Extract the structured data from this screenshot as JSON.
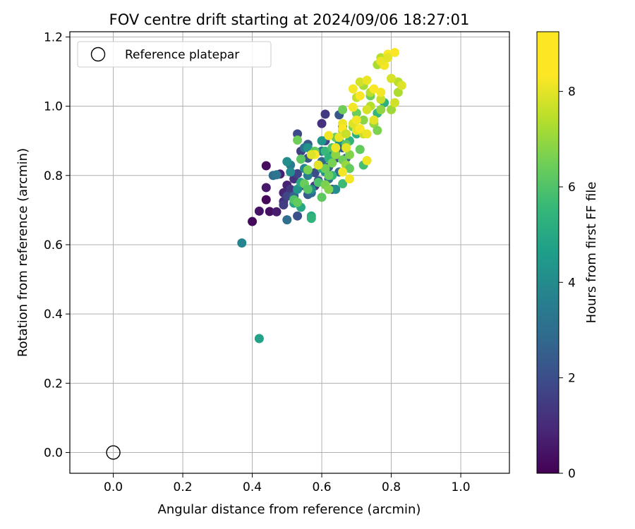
{
  "chart_data": {
    "type": "scatter",
    "title": "FOV centre drift starting at 2024/09/06 18:27:01",
    "xlabel": "Angular distance from reference (arcmin)",
    "ylabel": "Rotation from reference (arcmin)",
    "xlim": [
      -0.125,
      1.14
    ],
    "ylim": [
      -0.06,
      1.215
    ],
    "xticks": [
      "0.0",
      "0.2",
      "0.4",
      "0.6",
      "0.8",
      "1.0"
    ],
    "yticks": [
      "0.0",
      "0.2",
      "0.4",
      "0.6",
      "0.8",
      "1.0",
      "1.2"
    ],
    "grid": true,
    "legend": {
      "position": "top-left",
      "entries": [
        {
          "label": "Reference platepar",
          "marker": "open-circle",
          "x": 0.0,
          "y": 0.0
        }
      ]
    },
    "colorbar": {
      "label": "Hours from first FF file",
      "min": 0,
      "max": 9.25,
      "ticks": [
        "0",
        "2",
        "4",
        "6",
        "8"
      ],
      "colormap": "viridis"
    },
    "series": [
      {
        "points": [
          [
            0.4,
            0.667,
            0.2
          ],
          [
            0.42,
            0.697,
            0.5
          ],
          [
            0.44,
            0.828,
            0.3
          ],
          [
            0.44,
            0.765,
            0.6
          ],
          [
            0.44,
            0.73,
            0.2
          ],
          [
            0.45,
            0.696,
            0.4
          ],
          [
            0.47,
            0.695,
            0.7
          ],
          [
            0.48,
            0.804,
            0.8
          ],
          [
            0.49,
            0.75,
            1.0
          ],
          [
            0.49,
            0.725,
            1.2
          ],
          [
            0.5,
            0.772,
            0.9
          ],
          [
            0.51,
            0.76,
            1.5
          ],
          [
            0.5,
            0.74,
            2.0
          ],
          [
            0.49,
            0.715,
            1.7
          ],
          [
            0.52,
            0.742,
            2.2
          ],
          [
            0.52,
            0.79,
            1.4
          ],
          [
            0.53,
            0.805,
            1.9
          ],
          [
            0.54,
            0.77,
            2.5
          ],
          [
            0.53,
            0.683,
            2.3
          ],
          [
            0.53,
            0.92,
            2.1
          ],
          [
            0.54,
            0.87,
            1.8
          ],
          [
            0.56,
            0.89,
            2.6
          ],
          [
            0.56,
            0.85,
            2.4
          ],
          [
            0.56,
            0.745,
            2.7
          ],
          [
            0.58,
            0.808,
            2.2
          ],
          [
            0.58,
            0.77,
            1.6
          ],
          [
            0.6,
            0.95,
            1.3
          ],
          [
            0.61,
            0.977,
            1.6
          ],
          [
            0.61,
            0.9,
            2.0
          ],
          [
            0.62,
            0.825,
            2.8
          ],
          [
            0.64,
            0.85,
            2.3
          ],
          [
            0.63,
            0.76,
            1.8
          ],
          [
            0.65,
            0.975,
            2.5
          ],
          [
            0.66,
            0.94,
            2.0
          ],
          [
            0.66,
            0.88,
            2.6
          ],
          [
            0.67,
            0.85,
            2.9
          ],
          [
            0.59,
            0.785,
            2.4
          ],
          [
            0.6,
            0.84,
            3.1
          ],
          [
            0.46,
            0.8,
            3.3
          ],
          [
            0.47,
            0.802,
            3.6
          ],
          [
            0.5,
            0.672,
            3.4
          ],
          [
            0.51,
            0.83,
            3.8
          ],
          [
            0.52,
            0.74,
            3.0
          ],
          [
            0.55,
            0.88,
            3.5
          ],
          [
            0.56,
            0.8,
            3.9
          ],
          [
            0.57,
            0.75,
            3.2
          ],
          [
            0.6,
            0.87,
            3.7
          ],
          [
            0.62,
            0.79,
            3.4
          ],
          [
            0.64,
            0.87,
            3.6
          ],
          [
            0.65,
            0.81,
            3.3
          ],
          [
            0.37,
            0.605,
            4.2
          ],
          [
            0.5,
            0.84,
            4.5
          ],
          [
            0.51,
            0.81,
            4.4
          ],
          [
            0.53,
            0.76,
            4.8
          ],
          [
            0.55,
            0.82,
            4.3
          ],
          [
            0.56,
            0.88,
            4.7
          ],
          [
            0.57,
            0.76,
            4.6
          ],
          [
            0.59,
            0.83,
            4.1
          ],
          [
            0.6,
            0.9,
            4.9
          ],
          [
            0.61,
            0.81,
            4.5
          ],
          [
            0.63,
            0.86,
            4.2
          ],
          [
            0.64,
            0.76,
            4.6
          ],
          [
            0.65,
            0.9,
            4.8
          ],
          [
            0.42,
            0.329,
            5.3
          ],
          [
            0.52,
            0.72,
            5.4
          ],
          [
            0.54,
            0.708,
            5.5
          ],
          [
            0.54,
            0.78,
            5.6
          ],
          [
            0.57,
            0.683,
            5.7
          ],
          [
            0.57,
            0.676,
            6.0
          ],
          [
            0.6,
            0.82,
            5.8
          ],
          [
            0.61,
            0.87,
            6.2
          ],
          [
            0.62,
            0.85,
            5.9
          ],
          [
            0.63,
            0.8,
            6.1
          ],
          [
            0.64,
            0.88,
            5.5
          ],
          [
            0.66,
            0.776,
            6.3
          ],
          [
            0.68,
            0.9,
            6.0
          ],
          [
            0.7,
            0.92,
            5.8
          ],
          [
            0.7,
            0.96,
            6.4
          ],
          [
            0.72,
            0.83,
            6.5
          ],
          [
            0.78,
            1.01,
            5.9
          ],
          [
            0.76,
            0.98,
            6.1
          ],
          [
            0.52,
            0.73,
            6.7
          ],
          [
            0.53,
            0.722,
            7.0
          ],
          [
            0.53,
            0.902,
            7.2
          ],
          [
            0.54,
            0.847,
            6.9
          ],
          [
            0.55,
            0.776,
            7.1
          ],
          [
            0.56,
            0.76,
            6.8
          ],
          [
            0.56,
            0.816,
            7.3
          ],
          [
            0.58,
            0.87,
            7.0
          ],
          [
            0.59,
            0.78,
            6.6
          ],
          [
            0.6,
            0.737,
            6.9
          ],
          [
            0.61,
            0.773,
            7.4
          ],
          [
            0.61,
            0.82,
            7.2
          ],
          [
            0.62,
            0.76,
            7.5
          ],
          [
            0.62,
            0.8,
            7.1
          ],
          [
            0.63,
            0.836,
            7.3
          ],
          [
            0.63,
            0.88,
            6.7
          ],
          [
            0.64,
            0.86,
            7.6
          ],
          [
            0.64,
            0.91,
            7.0
          ],
          [
            0.66,
            0.845,
            7.2
          ],
          [
            0.66,
            0.93,
            7.4
          ],
          [
            0.67,
            0.89,
            6.9
          ],
          [
            0.67,
            0.83,
            7.8
          ],
          [
            0.68,
            0.82,
            7.0
          ],
          [
            0.68,
            0.86,
            7.5
          ],
          [
            0.69,
            0.94,
            7.3
          ],
          [
            0.7,
            0.98,
            7.1
          ],
          [
            0.71,
            0.875,
            7.0
          ],
          [
            0.72,
            0.96,
            7.6
          ],
          [
            0.74,
            1.03,
            7.2
          ],
          [
            0.75,
            0.95,
            7.8
          ],
          [
            0.76,
            0.93,
            7.4
          ],
          [
            0.77,
            0.99,
            7.7
          ],
          [
            0.66,
            0.99,
            7.2
          ],
          [
            0.8,
            0.99,
            7.9
          ],
          [
            0.82,
            1.04,
            8.1
          ],
          [
            0.82,
            1.07,
            8.3
          ],
          [
            0.77,
            1.14,
            8.2
          ],
          [
            0.72,
            1.06,
            8.0
          ],
          [
            0.7,
            1.025,
            8.4
          ],
          [
            0.74,
            1.0,
            8.2
          ],
          [
            0.77,
            1.02,
            8.5
          ],
          [
            0.71,
            1.07,
            8.6
          ],
          [
            0.73,
            0.99,
            8.7
          ],
          [
            0.69,
            0.95,
            8.8
          ],
          [
            0.7,
            0.93,
            8.9
          ],
          [
            0.74,
            1.04,
            8.3
          ],
          [
            0.76,
            1.12,
            8.1
          ],
          [
            0.8,
            1.08,
            8.7
          ],
          [
            0.72,
            0.92,
            8.5
          ],
          [
            0.67,
            0.88,
            8.9
          ],
          [
            0.66,
            0.95,
            9.0
          ],
          [
            0.69,
            0.997,
            9.1
          ],
          [
            0.71,
            0.935,
            9.2
          ],
          [
            0.73,
            0.92,
            9.0
          ],
          [
            0.75,
            0.96,
            8.9
          ],
          [
            0.77,
            1.04,
            9.1
          ],
          [
            0.79,
            1.15,
            9.2
          ],
          [
            0.81,
            1.155,
            9.2
          ],
          [
            0.78,
            1.118,
            9.1
          ],
          [
            0.77,
            1.13,
            9.0
          ],
          [
            0.69,
            1.05,
            9.1
          ],
          [
            0.71,
            1.03,
            9.2
          ],
          [
            0.73,
            1.075,
            9.0
          ],
          [
            0.75,
            1.05,
            9.2
          ],
          [
            0.79,
            1.14,
            8.9
          ],
          [
            0.68,
            0.79,
            9.1
          ],
          [
            0.66,
            0.935,
            9.2
          ],
          [
            0.65,
            0.91,
            9.0
          ],
          [
            0.7,
            0.96,
            9.1
          ],
          [
            0.58,
            0.86,
            9.2
          ],
          [
            0.62,
            0.915,
            9.1
          ],
          [
            0.57,
            0.86,
            8.8
          ],
          [
            0.59,
            0.83,
            8.9
          ],
          [
            0.64,
            0.88,
            9.0
          ],
          [
            0.67,
            0.92,
            8.5
          ],
          [
            0.73,
            0.843,
            9.0
          ],
          [
            0.66,
            0.81,
            9.1
          ],
          [
            0.81,
            1.01,
            8.6
          ],
          [
            0.83,
            1.06,
            8.8
          ]
        ]
      }
    ]
  }
}
